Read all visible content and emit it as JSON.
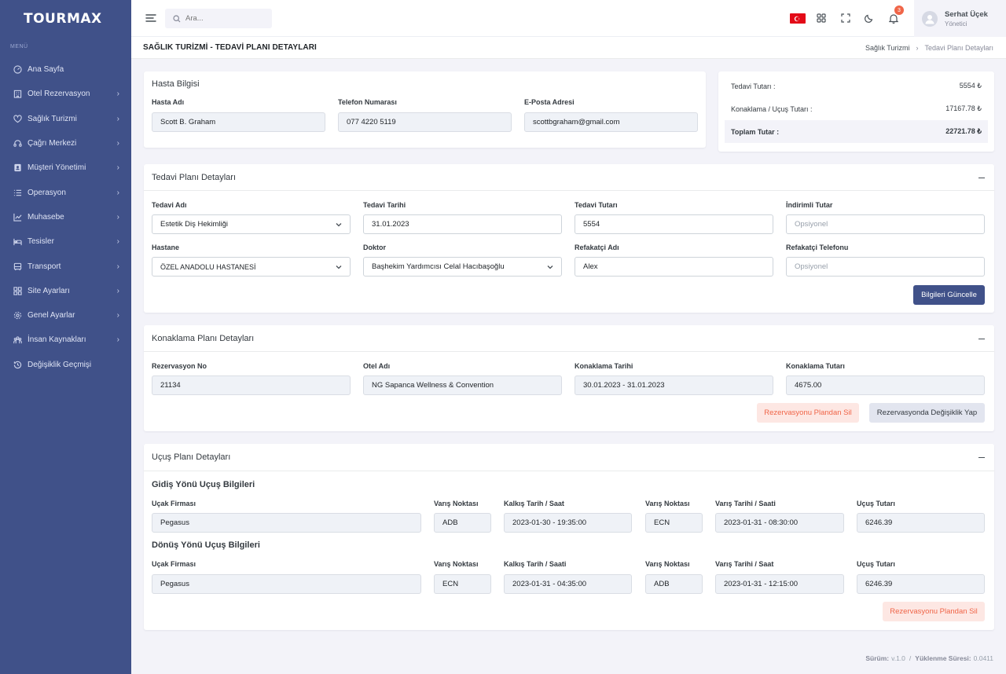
{
  "app": {
    "logo": "TOURMAX"
  },
  "sidebar": {
    "menu_title": "MENÜ",
    "items": [
      {
        "label": "Ana Sayfa",
        "icon": "dashboard-icon",
        "chevron": false
      },
      {
        "label": "Otel Rezervasyon",
        "icon": "building-icon",
        "chevron": true
      },
      {
        "label": "Sağlık Turizmi",
        "icon": "heart-icon",
        "chevron": true
      },
      {
        "label": "Çağrı Merkezi",
        "icon": "headset-icon",
        "chevron": true
      },
      {
        "label": "Müşteri Yönetimi",
        "icon": "contact-icon",
        "chevron": true
      },
      {
        "label": "Operasyon",
        "icon": "list-icon",
        "chevron": true
      },
      {
        "label": "Muhasebe",
        "icon": "chart-icon",
        "chevron": true
      },
      {
        "label": "Tesisler",
        "icon": "bed-icon",
        "chevron": true
      },
      {
        "label": "Transport",
        "icon": "bus-icon",
        "chevron": true
      },
      {
        "label": "Site Ayarları",
        "icon": "grid-icon",
        "chevron": true
      },
      {
        "label": "Genel Ayarlar",
        "icon": "settings-icon",
        "chevron": true
      },
      {
        "label": "İnsan Kaynakları",
        "icon": "team-icon",
        "chevron": true
      },
      {
        "label": "Değişiklik Geçmişi",
        "icon": "history-icon",
        "chevron": false
      }
    ]
  },
  "topbar": {
    "search_placeholder": "Ara...",
    "notification_count": "3",
    "user_name": "Serhat Üçek",
    "user_role": "Yönetici"
  },
  "page": {
    "title": "SAĞLIK TURİZMİ - TEDAVİ PLANI DETAYLARI",
    "breadcrumb": [
      "Sağlık Turizmi",
      "Tedavi Planı Detayları"
    ]
  },
  "patient": {
    "title": "Hasta Bilgisi",
    "name_label": "Hasta Adı",
    "name": "Scott B. Graham",
    "phone_label": "Telefon Numarası",
    "phone": "077 4220 5119",
    "email_label": "E-Posta Adresi",
    "email": "scottbgraham@gmail.com"
  },
  "summary": {
    "rows": [
      {
        "label": "Tedavi Tutarı :",
        "value": "5554 ₺"
      },
      {
        "label": "Konaklama / Uçuş Tutarı :",
        "value": "17167.78 ₺"
      },
      {
        "label": "Toplam Tutar :",
        "value": "22721.78 ₺"
      }
    ]
  },
  "treatment": {
    "title": "Tedavi Planı Detayları",
    "name_label": "Tedavi Adı",
    "name": "Estetik Diş Hekimliği",
    "date_label": "Tedavi Tarihi",
    "date": "31.01.2023",
    "amount_label": "Tedavi Tutarı",
    "amount": "5554",
    "discount_label": "İndirimli Tutar",
    "discount_placeholder": "Opsiyonel",
    "hospital_label": "Hastane",
    "hospital": "ÖZEL ANADOLU HASTANESİ",
    "doctor_label": "Doktor",
    "doctor": "Başhekim Yardımcısı Celal Hacıbaşoğlu",
    "companion_label": "Refakatçi Adı",
    "companion": "Alex",
    "companion_phone_label": "Refakatçi Telefonu",
    "companion_phone_placeholder": "Opsiyonel",
    "update_button": "Bilgileri Güncelle"
  },
  "accommodation": {
    "title": "Konaklama Planı Detayları",
    "res_no_label": "Rezervasyon No",
    "res_no": "21134",
    "hotel_label": "Otel Adı",
    "hotel": "NG Sapanca Wellness & Convention",
    "date_label": "Konaklama Tarihi",
    "date": "30.01.2023 - 31.01.2023",
    "amount_label": "Konaklama Tutarı",
    "amount": "4675.00",
    "remove_button": "Rezervasyonu Plandan Sil",
    "edit_button": "Rezervasyonda Değişiklik Yap"
  },
  "flight": {
    "title": "Uçuş Planı Detayları",
    "outbound": {
      "heading": "Gidiş Yönü Uçuş Bilgileri",
      "airline_label": "Uçak Firması",
      "airline": "Pegasus",
      "origin_label": "Varış Noktası",
      "origin": "ADB",
      "dep_label": "Kalkış Tarih / Saat",
      "dep": "2023-01-30 - 19:35:00",
      "dest_label": "Varış Noktası",
      "dest": "ECN",
      "arr_label": "Varış Tarihi / Saati",
      "arr": "2023-01-31 - 08:30:00",
      "amount_label": "Uçuş Tutarı",
      "amount": "6246.39"
    },
    "return": {
      "heading": "Dönüş Yönü Uçuş Bilgileri",
      "airline_label": "Uçak Firması",
      "airline": "Pegasus",
      "origin_label": "Varış Noktası",
      "origin": "ECN",
      "dep_label": "Kalkış Tarih / Saati",
      "dep": "2023-01-31 - 04:35:00",
      "dest_label": "Varış Noktası",
      "dest": "ADB",
      "arr_label": "Varış Tarihi / Saat",
      "arr": "2023-01-31 - 12:15:00",
      "amount_label": "Uçuş Tutarı",
      "amount": "6246.39"
    },
    "remove_button": "Rezervasyonu Plandan Sil"
  },
  "footer": {
    "version_label": "Sürüm:",
    "version": "v.1.0",
    "load_label": "Yüklenme Süresi:",
    "load": "0.0411"
  },
  "colors": {
    "sidebar": "#405189",
    "primary": "#405189",
    "danger": "#f06548",
    "page_bg": "#f3f3f9"
  }
}
